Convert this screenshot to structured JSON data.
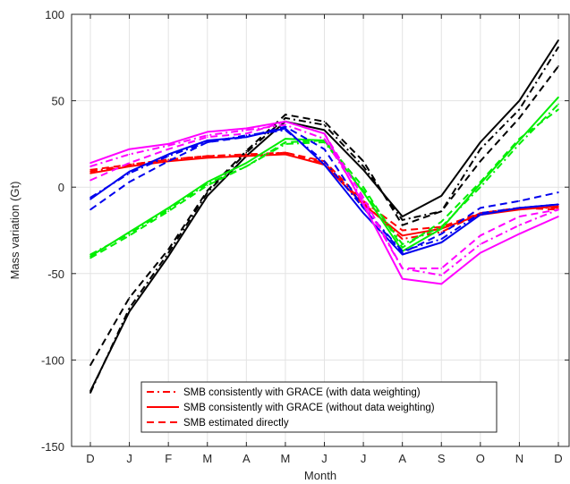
{
  "chart_data": {
    "type": "line",
    "xlabel": "Month",
    "ylabel": "Mass variation (Gt)",
    "categories": [
      "D",
      "J",
      "F",
      "M",
      "A",
      "M",
      "J",
      "J",
      "A",
      "S",
      "O",
      "N",
      "D"
    ],
    "ylim": [
      -150,
      100
    ],
    "yticks": [
      100,
      50,
      0,
      -50,
      -100,
      -150
    ],
    "grid": true,
    "legend_position": "bottom-center",
    "legend": [
      {
        "label": "SMB consistently with GRACE (with data weighting)",
        "dash": "dashdot",
        "color": "#ff0000"
      },
      {
        "label": "SMB consistently with GRACE (without data weighting)",
        "dash": "solid",
        "color": "#ff0000"
      },
      {
        "label": "SMB estimated directly",
        "dash": "dashed",
        "color": "#ff0000"
      }
    ],
    "series": [
      {
        "color": "#000000",
        "dash": "solid",
        "values": [
          -118,
          -72,
          -40,
          -5,
          18,
          38,
          33,
          10,
          -17,
          -5,
          26,
          50,
          85
        ]
      },
      {
        "color": "#000000",
        "dash": "dashdot",
        "values": [
          -119,
          -70,
          -38,
          -3,
          20,
          40,
          36,
          12,
          -19,
          -14,
          22,
          45,
          81
        ]
      },
      {
        "color": "#000000",
        "dash": "dashed",
        "values": [
          -103,
          -64,
          -36,
          -2,
          21,
          42,
          38,
          15,
          -22,
          -14,
          15,
          40,
          70
        ]
      },
      {
        "color": "#ff0000",
        "dash": "solid",
        "values": [
          8,
          12,
          15,
          17,
          18,
          19,
          13,
          -10,
          -28,
          -24,
          -16,
          -13,
          -11
        ]
      },
      {
        "color": "#ff0000",
        "dash": "dashdot",
        "values": [
          9,
          13,
          16,
          18,
          19,
          20,
          14,
          -9,
          -30,
          -26,
          -15,
          -12,
          -12
        ]
      },
      {
        "color": "#ff0000",
        "dash": "dashed",
        "values": [
          10,
          13,
          16,
          18,
          18,
          20,
          15,
          -8,
          -25,
          -23,
          -15,
          -12,
          -13
        ]
      },
      {
        "color": "#00ee00",
        "dash": "solid",
        "values": [
          -40,
          -26,
          -12,
          3,
          14,
          28,
          27,
          -3,
          -37,
          -24,
          2,
          27,
          52
        ]
      },
      {
        "color": "#00ee00",
        "dash": "dashdot",
        "values": [
          -39,
          -27,
          -13,
          2,
          12,
          25,
          26,
          -2,
          -33,
          -23,
          0,
          25,
          48
        ]
      },
      {
        "color": "#00ee00",
        "dash": "dashed",
        "values": [
          -41,
          -28,
          -14,
          1,
          12,
          26,
          27,
          0,
          -35,
          -20,
          3,
          28,
          45
        ]
      },
      {
        "color": "#0000ee",
        "dash": "solid",
        "values": [
          -7,
          9,
          19,
          27,
          29,
          34,
          13,
          -15,
          -39,
          -32,
          -16,
          -12,
          -10
        ]
      },
      {
        "color": "#0000ee",
        "dash": "dashdot",
        "values": [
          -6,
          8,
          18,
          26,
          30,
          33,
          15,
          -12,
          -37,
          -30,
          -15,
          -12,
          -10
        ]
      },
      {
        "color": "#0000ee",
        "dash": "dashed",
        "values": [
          -13,
          3,
          15,
          26,
          29,
          35,
          22,
          -12,
          -38,
          -27,
          -12,
          -8,
          -3
        ]
      },
      {
        "color": "#ff00ff",
        "dash": "solid",
        "values": [
          14,
          22,
          25,
          32,
          34,
          38,
          31,
          -10,
          -53,
          -56,
          -38,
          -27,
          -17
        ]
      },
      {
        "color": "#ff00ff",
        "dash": "dashdot",
        "values": [
          12,
          19,
          24,
          30,
          33,
          36,
          28,
          -8,
          -47,
          -51,
          -33,
          -22,
          -13
        ]
      },
      {
        "color": "#ff00ff",
        "dash": "dashed",
        "values": [
          4,
          14,
          22,
          29,
          31,
          38,
          31,
          -6,
          -47,
          -47,
          -28,
          -17,
          -13
        ]
      }
    ]
  }
}
